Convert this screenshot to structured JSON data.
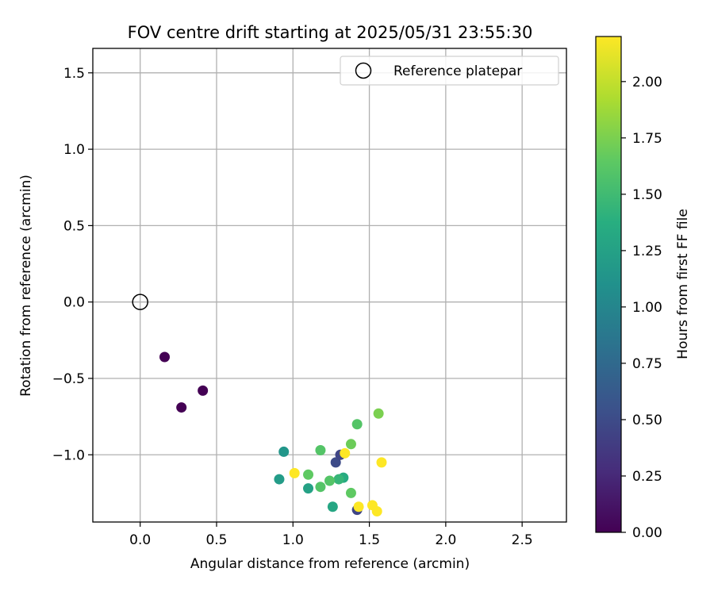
{
  "chart_data": {
    "type": "scatter",
    "title": "FOV centre drift starting at 2025/05/31 23:55:30",
    "xlabel": "Angular distance from reference (arcmin)",
    "ylabel": "Rotation from reference (arcmin)",
    "xlim": [
      -0.31,
      2.79
    ],
    "ylim": [
      -1.44,
      1.66
    ],
    "xticks": [
      0.0,
      0.5,
      1.0,
      1.5,
      2.0,
      2.5
    ],
    "xtick_labels": [
      "0.0",
      "0.5",
      "1.0",
      "1.5",
      "2.0",
      "2.5"
    ],
    "yticks": [
      -1.0,
      -0.5,
      0.0,
      0.5,
      1.0,
      1.5
    ],
    "ytick_labels": [
      "−1.0",
      "−0.5",
      "0.0",
      "0.5",
      "1.0",
      "1.5"
    ],
    "grid": true,
    "legend": {
      "placement": "top-right",
      "entries": [
        "Reference platepar"
      ]
    },
    "reference_point": {
      "x": 0.0,
      "y": 0.0
    },
    "colorbar": {
      "label": "Hours from first FF file",
      "range": [
        0.0,
        2.2
      ],
      "ticks": [
        0.0,
        0.25,
        0.5,
        0.75,
        1.0,
        1.25,
        1.5,
        1.75,
        2.0
      ],
      "tick_labels": [
        "0.00",
        "0.25",
        "0.50",
        "0.75",
        "1.00",
        "1.25",
        "1.50",
        "1.75",
        "2.00"
      ],
      "colormap": "viridis"
    },
    "points": [
      {
        "x": 0.16,
        "y": -0.36,
        "t": 0.0
      },
      {
        "x": 0.41,
        "y": -0.58,
        "t": 0.0
      },
      {
        "x": 0.27,
        "y": -0.69,
        "t": 0.0
      },
      {
        "x": 1.28,
        "y": -1.05,
        "t": 0.5
      },
      {
        "x": 1.31,
        "y": -1.0,
        "t": 0.45
      },
      {
        "x": 1.42,
        "y": -1.36,
        "t": 0.45
      },
      {
        "x": 0.94,
        "y": -0.98,
        "t": 1.15
      },
      {
        "x": 0.91,
        "y": -1.16,
        "t": 1.2
      },
      {
        "x": 1.1,
        "y": -1.22,
        "t": 1.25
      },
      {
        "x": 1.26,
        "y": -1.34,
        "t": 1.3
      },
      {
        "x": 1.33,
        "y": -1.15,
        "t": 1.35
      },
      {
        "x": 1.3,
        "y": -1.16,
        "t": 1.45
      },
      {
        "x": 1.18,
        "y": -0.97,
        "t": 1.6
      },
      {
        "x": 1.1,
        "y": -1.13,
        "t": 1.65
      },
      {
        "x": 1.18,
        "y": -1.21,
        "t": 1.6
      },
      {
        "x": 1.24,
        "y": -1.17,
        "t": 1.6
      },
      {
        "x": 1.38,
        "y": -1.25,
        "t": 1.65
      },
      {
        "x": 1.38,
        "y": -0.93,
        "t": 1.7
      },
      {
        "x": 1.42,
        "y": -0.8,
        "t": 1.6
      },
      {
        "x": 1.56,
        "y": -0.73,
        "t": 1.75
      },
      {
        "x": 1.01,
        "y": -1.12,
        "t": 2.2
      },
      {
        "x": 1.34,
        "y": -0.99,
        "t": 2.2
      },
      {
        "x": 1.58,
        "y": -1.05,
        "t": 2.2
      },
      {
        "x": 1.43,
        "y": -1.34,
        "t": 2.2
      },
      {
        "x": 1.52,
        "y": -1.33,
        "t": 2.2
      },
      {
        "x": 1.55,
        "y": -1.37,
        "t": 2.2
      }
    ]
  }
}
